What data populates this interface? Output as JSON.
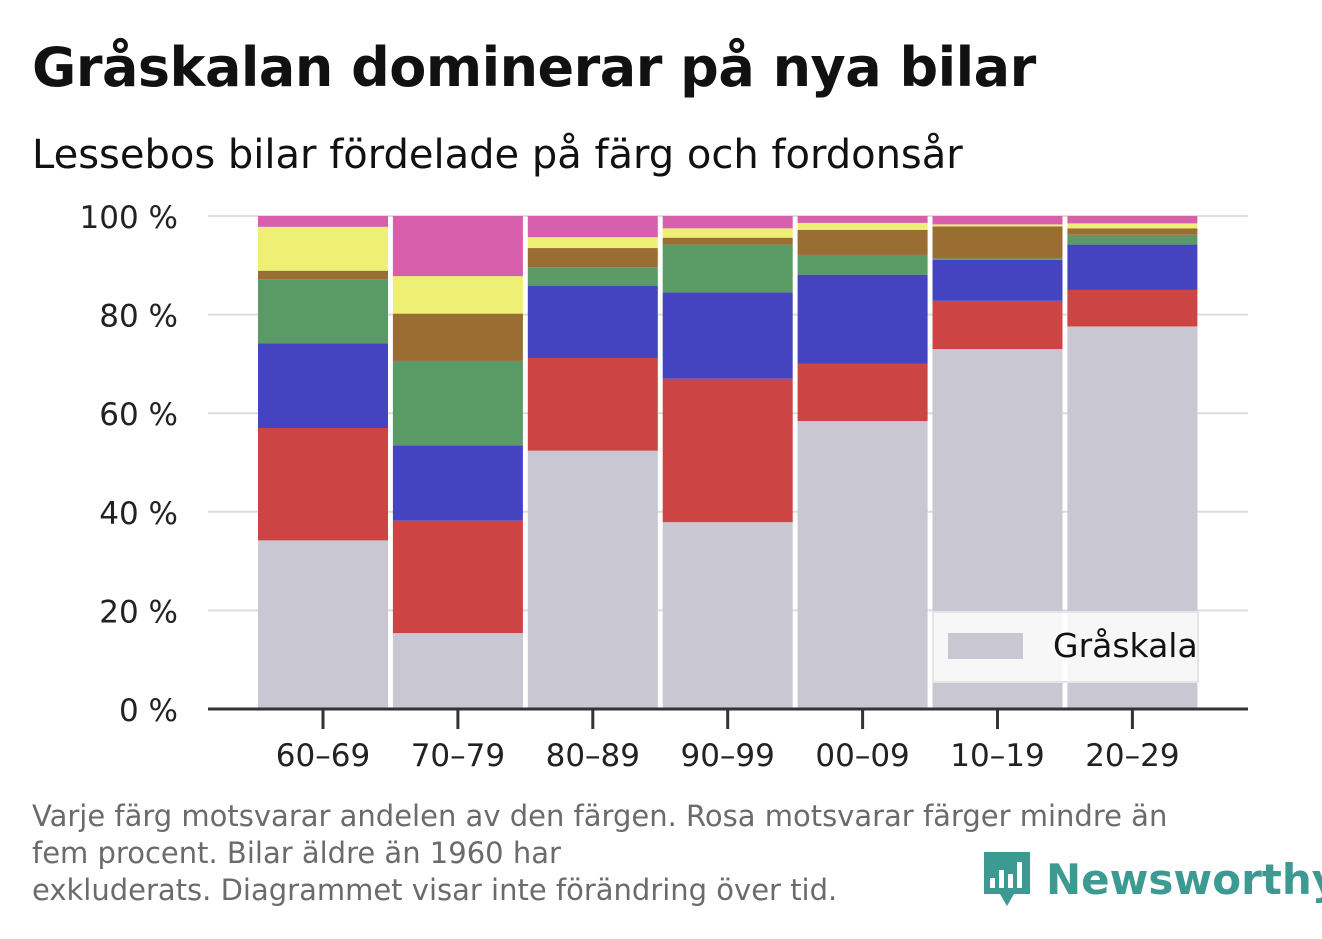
{
  "title": "Gråskalan dominerar på nya bilar",
  "subtitle": "Lessebos bilar fördelade på färg och fordonsår",
  "footnote": {
    "line1": "Varje färg motsvarar andelen av den färgen. Rosa motsvarar färger mindre än",
    "line2": "fem procent. Bilar äldre än 1960 har",
    "line3": "exkluderats. Diagrammet visar inte förändring över tid."
  },
  "brand": {
    "name": "Newsworthy",
    "icon": "newsworthy-logo-icon",
    "color": "#3d9a93"
  },
  "legend": {
    "label": "Gråskala"
  },
  "chart_data": {
    "type": "bar",
    "stacked": true,
    "categories": [
      "60–69",
      "70–79",
      "80–89",
      "90–99",
      "00–09",
      "10–19",
      "20–29"
    ],
    "y_ticks": [
      "0 %",
      "20 %",
      "40 %",
      "60 %",
      "80 %",
      "100 %"
    ],
    "ylim": [
      0,
      100
    ],
    "grid": true,
    "legend_position": "bottom-right",
    "series": [
      {
        "name": "Gråskala",
        "color": "#c8c7d2",
        "values": [
          34.2,
          15.4,
          52.4,
          37.9,
          58.4,
          73.0,
          77.6
        ]
      },
      {
        "color": "#cc4444",
        "values": [
          22.8,
          22.8,
          18.8,
          29.1,
          11.6,
          9.8,
          7.4
        ]
      },
      {
        "color": "#4444c0",
        "values": [
          17.2,
          15.3,
          14.6,
          17.5,
          18.1,
          8.3,
          9.2
        ]
      },
      {
        "color": "#5a9a64",
        "values": [
          13.0,
          17.1,
          3.8,
          9.7,
          4.0,
          0.3,
          2.0
        ]
      },
      {
        "color": "#9a6e33",
        "values": [
          1.7,
          9.6,
          3.9,
          1.4,
          5.1,
          6.5,
          1.3
        ]
      },
      {
        "color": "#eef076",
        "values": [
          8.9,
          7.6,
          2.2,
          1.9,
          1.4,
          0.4,
          1.0
        ]
      },
      {
        "color": "#d75fab",
        "values": [
          2.2,
          12.2,
          4.3,
          2.5,
          1.4,
          1.7,
          1.5
        ]
      }
    ]
  }
}
